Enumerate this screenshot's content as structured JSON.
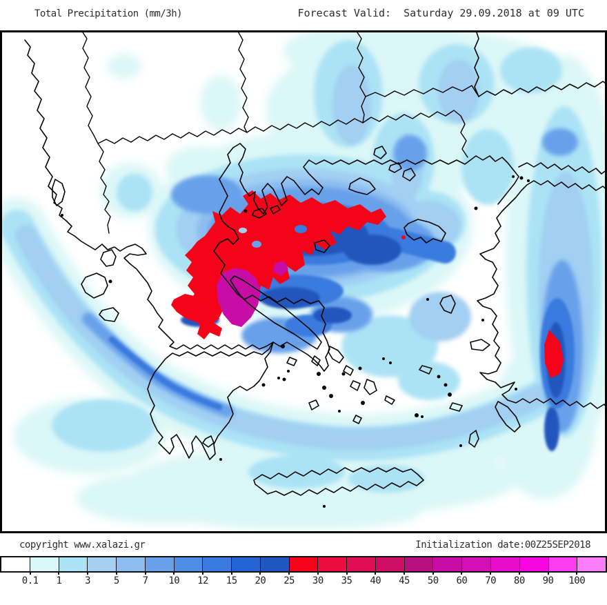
{
  "header": {
    "title": "Total Precipitation (mm/3h)",
    "forecast_valid": "Forecast Valid:  Saturday 29.09.2018 at 09 UTC"
  },
  "footer": {
    "copyright": "copyright www.xalazi.gr",
    "initialization": "Initialization date:00Z25SEP2018"
  },
  "colorbar": {
    "unit": "mm/3h",
    "labels": [
      "0.1",
      "1",
      "3",
      "5",
      "7",
      "10",
      "12",
      "15",
      "20",
      "25",
      "30",
      "35",
      "40",
      "45",
      "50",
      "60",
      "70",
      "80",
      "90",
      "100"
    ],
    "colors": [
      "#ffffff",
      "#dbf7f7",
      "#abe3f5",
      "#a2cff2",
      "#8dbdf0",
      "#68a1ea",
      "#4d8de6",
      "#3a7ade",
      "#2563d3",
      "#2056bd",
      "#f50419",
      "#ec0d3e",
      "#df0d53",
      "#cf0d66",
      "#b8107e",
      "#c70da6",
      "#d310b6",
      "#e90cc9",
      "#f705e0",
      "#fb3df0",
      "#fc7df8"
    ]
  },
  "map": {
    "region": "Greece and the Aegean Sea",
    "background_color": "#ffffff",
    "coastline_color": "#050505",
    "frame_color": "#000000",
    "extreme_precip_color": "#f50419",
    "extreme_core_color": "#c70da6"
  }
}
